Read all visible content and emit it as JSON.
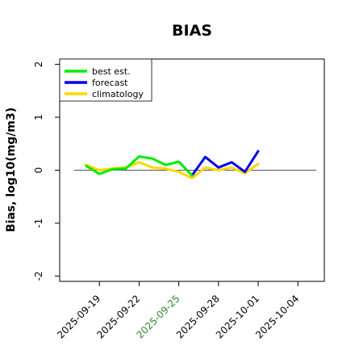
{
  "chart_data": {
    "type": "line",
    "title": "BIAS",
    "xlabel": "",
    "ylabel": "Bias, log10(mg/m3)",
    "xlim": [
      "2025-09-16",
      "2025-10-06"
    ],
    "ylim": [
      -2.1,
      2.1
    ],
    "x_ticks": [
      "2025-09-19",
      "2025-09-22",
      "2025-09-25",
      "2025-09-28",
      "2025-10-01",
      "2025-10-04"
    ],
    "highlighted_x_tick": "2025-09-25",
    "highlight_color": "#2e8b2e",
    "y_ticks": [
      -2,
      -1,
      0,
      1,
      2
    ],
    "zero_line": true,
    "grid": false,
    "legend": {
      "placement": "top-left",
      "entries": [
        "best est.",
        "forecast",
        "climatology"
      ]
    },
    "x": [
      "2025-09-18",
      "2025-09-19",
      "2025-09-20",
      "2025-09-21",
      "2025-09-22",
      "2025-09-23",
      "2025-09-24",
      "2025-09-25",
      "2025-09-26",
      "2025-09-27",
      "2025-09-28",
      "2025-09-29",
      "2025-09-30",
      "2025-10-01"
    ],
    "series": [
      {
        "name": "best est.",
        "color": "#00ee00",
        "values": [
          0.08,
          -0.07,
          0.02,
          0.03,
          0.26,
          0.22,
          0.1,
          0.16,
          -0.1,
          null,
          null,
          null,
          null,
          null
        ]
      },
      {
        "name": "forecast",
        "color": "#0000ee",
        "values": [
          null,
          null,
          null,
          null,
          null,
          null,
          null,
          0.16,
          -0.1,
          0.25,
          0.05,
          0.15,
          -0.03,
          0.36
        ]
      },
      {
        "name": "climatology",
        "color": "#ffd700",
        "values": [
          0.1,
          0.0,
          0.03,
          0.05,
          0.15,
          0.05,
          0.03,
          -0.03,
          -0.15,
          0.05,
          0.0,
          0.05,
          -0.06,
          0.12
        ]
      }
    ]
  }
}
